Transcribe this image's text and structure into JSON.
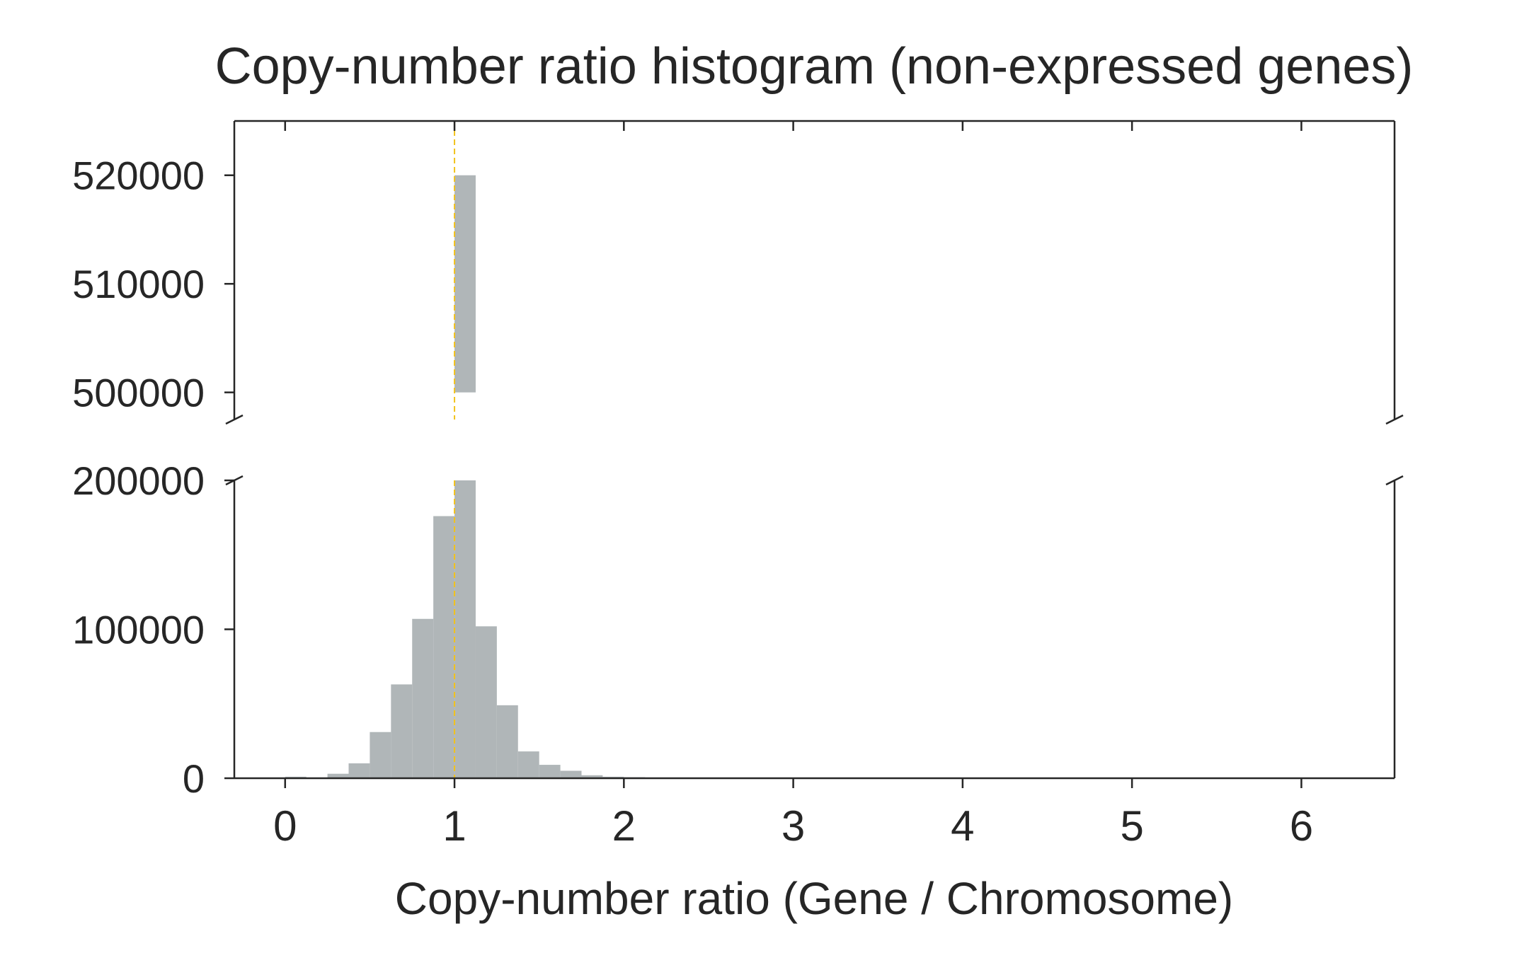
{
  "chart_data": {
    "type": "bar",
    "title": "Copy-number ratio histogram (non-expressed genes)",
    "xlabel": "Copy-number ratio (Gene / Chromosome)",
    "ylabel": "",
    "xlim": [
      -0.3,
      6.55
    ],
    "xticks": [
      "0",
      "1",
      "2",
      "3",
      "4",
      "5",
      "6"
    ],
    "broken_y_axis": true,
    "ylim_top": [
      497500,
      525000
    ],
    "ylim_bottom": [
      0,
      200000
    ],
    "yticks_top": [
      "500000",
      "510000",
      "520000"
    ],
    "yticks_bottom": [
      "0",
      "100000",
      "200000"
    ],
    "bin_width": 0.125,
    "bins": [
      {
        "x0": 0.0,
        "count": 1000
      },
      {
        "x0": 0.25,
        "count": 3000
      },
      {
        "x0": 0.375,
        "count": 10000
      },
      {
        "x0": 0.5,
        "count": 31000
      },
      {
        "x0": 0.625,
        "count": 63000
      },
      {
        "x0": 0.75,
        "count": 107000
      },
      {
        "x0": 0.875,
        "count": 176000
      },
      {
        "x0": 1.0,
        "count": 520000
      },
      {
        "x0": 1.125,
        "count": 102000
      },
      {
        "x0": 1.25,
        "count": 49000
      },
      {
        "x0": 1.375,
        "count": 18000
      },
      {
        "x0": 1.5,
        "count": 9000
      },
      {
        "x0": 1.625,
        "count": 5000
      },
      {
        "x0": 1.75,
        "count": 2000
      },
      {
        "x0": 1.875,
        "count": 1000
      },
      {
        "x0": 2.0,
        "count": 700
      }
    ],
    "reference_line": {
      "x": 1,
      "color": "#f2c21b",
      "style": "dashed"
    },
    "colors": {
      "bars": "#b0b6b8",
      "axes": "#262626"
    }
  }
}
